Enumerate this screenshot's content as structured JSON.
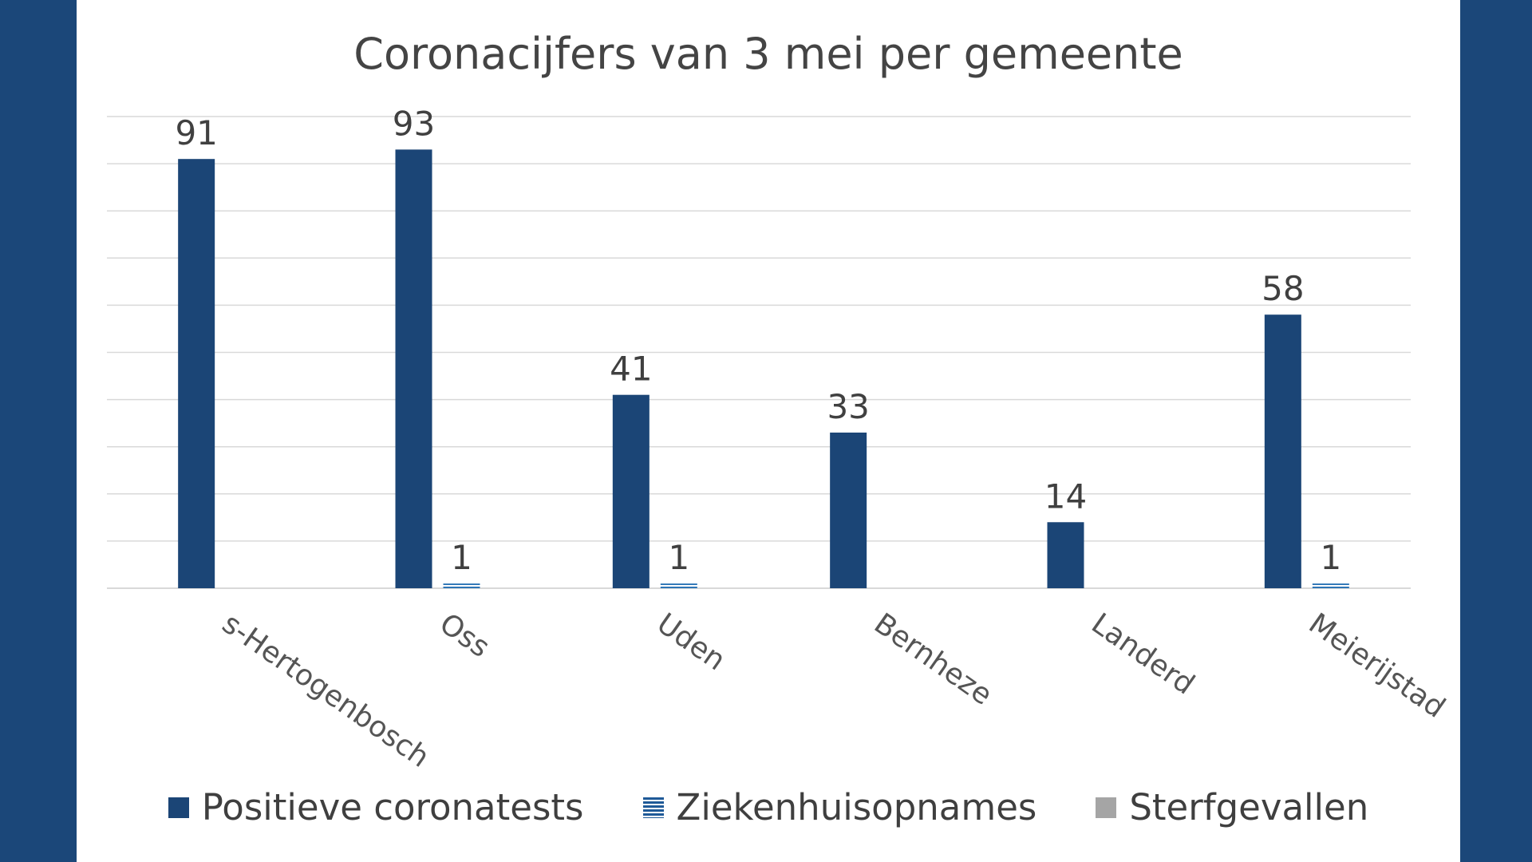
{
  "chart_data": {
    "type": "bar",
    "title": "Coronacijfers van 3 mei per gemeente",
    "categories": [
      "s-Hertogenbosch",
      "Oss",
      "Uden",
      "Bernheze",
      "Landerd",
      "Meierijstad"
    ],
    "series": [
      {
        "name": "Positieve coronatests",
        "values": [
          91,
          93,
          41,
          33,
          14,
          58
        ],
        "color": "#1b4576"
      },
      {
        "name": "Ziekenhuisopnames",
        "values": [
          0,
          1,
          1,
          0,
          0,
          1
        ],
        "color": "#2e75b6"
      },
      {
        "name": "Sterfgevallen",
        "values": [
          0,
          0,
          0,
          0,
          0,
          0
        ],
        "color": "#a5a5a5"
      }
    ],
    "ylim": [
      0,
      100
    ],
    "grid": true,
    "legend": "bottom",
    "x_tick_rotation": 35,
    "data_labels": true
  },
  "colors": {
    "background": "#1b4779",
    "panel": "#ffffff",
    "gridline": "#d9d9d9",
    "text": "#404040"
  }
}
